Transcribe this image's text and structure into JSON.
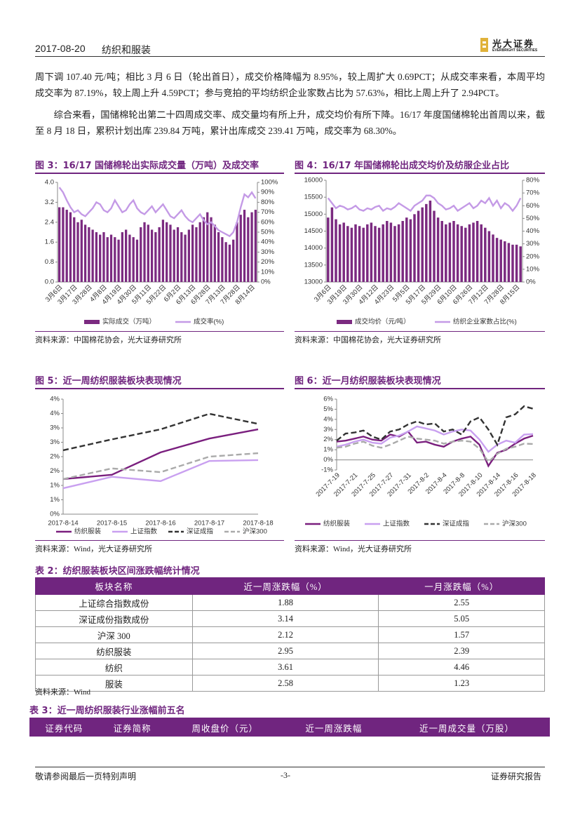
{
  "header": {
    "date": "2017-08-20",
    "sector": "纺织和服装",
    "logo_cn": "光大证券",
    "logo_en": "EVERBRIGHT SECURITIES"
  },
  "paragraphs": [
    "周下调 107.40 元/吨；相比 3 月 6 日（轮出首日），成交价格降幅为 8.95%，较上周扩大 0.69PCT；从成交率来看，本周平均成交率为 87.19%，较上周上升 4.59PCT；参与竞拍的平均纺织企业家数占比为 57.63%，相比上周上升了 2.94PCT。",
    "综合来看，国储棉轮出第二十四周成交率、成交量均有所上升，成交均价有所下降。16/17 年度国储棉轮出首周以来，截至 8 月 18 日，累积计划出库 239.84 万吨，累计出库成交 239.41 万吨，成交率为 68.30%。"
  ],
  "chart_data": [
    {
      "type": "combo",
      "title": "图 3：16/17 国储棉轮出实际成交量（万吨）及成交率",
      "source": "资料来源：中国棉花协会，光大证券研究所",
      "categories": [
        "3月6日",
        null,
        null,
        null,
        "3月17日",
        null,
        null,
        null,
        "3月28日",
        null,
        null,
        null,
        "4月8日",
        null,
        null,
        null,
        "4月19日",
        null,
        null,
        null,
        "4月30日",
        null,
        null,
        null,
        "5月11日",
        null,
        null,
        null,
        "5月22日",
        null,
        null,
        null,
        "6月2日",
        null,
        null,
        null,
        "6月13日",
        null,
        null,
        null,
        "6月28日",
        null,
        null,
        null,
        "7月13日",
        null,
        null,
        null,
        "7月28日",
        null,
        null,
        null,
        "8月14日",
        null
      ],
      "series": [
        {
          "name": "实际成交（万吨）",
          "color": "#7b2a80",
          "type": "bar",
          "values": [
            3.0,
            3.0,
            2.9,
            2.8,
            2.6,
            2.4,
            2.5,
            2.3,
            2.2,
            2.1,
            2.0,
            1.9,
            2.0,
            1.8,
            1.9,
            1.8,
            1.7,
            2.0,
            2.1,
            1.9,
            1.8,
            1.7,
            2.2,
            2.4,
            2.3,
            2.1,
            2.0,
            2.2,
            2.5,
            2.4,
            2.3,
            2.1,
            2.2,
            2.0,
            1.9,
            2.1,
            2.3,
            2.2,
            2.4,
            2.6,
            2.8,
            2.6,
            2.3,
            2.0,
            1.8,
            1.6,
            1.5,
            1.7,
            2.4,
            2.7,
            2.9,
            2.6,
            2.8,
            2.9
          ]
        },
        {
          "name": "成交率(%)",
          "color": "#c49ae6",
          "type": "line",
          "axis": "y2",
          "values": [
            95,
            90,
            82,
            75,
            70,
            72,
            68,
            66,
            70,
            74,
            80,
            78,
            72,
            70,
            74,
            82,
            76,
            70,
            72,
            78,
            82,
            74,
            70,
            68,
            72,
            76,
            70,
            74,
            78,
            72,
            66,
            64,
            68,
            72,
            66,
            62,
            60,
            64,
            68,
            62,
            58,
            60,
            56,
            52,
            50,
            48,
            46,
            50,
            60,
            75,
            88,
            85,
            90,
            84
          ]
        }
      ],
      "ylim": [
        0,
        4
      ],
      "yticks": [
        {
          "value": 0,
          "label": "0.0"
        },
        0.8,
        1.6,
        2.4,
        3.2,
        {
          "value": 4,
          "label": "4.0"
        }
      ],
      "y2lim": [
        0,
        100
      ],
      "y2ticks": [
        {
          "value": 0,
          "label": "0%"
        },
        {
          "value": 10,
          "label": "10%"
        },
        {
          "value": 20,
          "label": "20%"
        },
        {
          "value": 30,
          "label": "30%"
        },
        {
          "value": 40,
          "label": "40%"
        },
        {
          "value": 50,
          "label": "50%"
        },
        {
          "value": 60,
          "label": "60%"
        },
        {
          "value": 70,
          "label": "70%"
        },
        {
          "value": 80,
          "label": "80%"
        },
        {
          "value": 90,
          "label": "90%"
        },
        {
          "value": 100,
          "label": "100%"
        }
      ]
    },
    {
      "type": "combo",
      "title": "图 4：16/17 年国储棉轮出成交均价及纺服企业占比",
      "source": "资料来源：中国棉花协会，光大证券研究所",
      "categories": [
        "3月6日",
        null,
        null,
        null,
        "3月19日",
        null,
        null,
        null,
        "3月30日",
        null,
        null,
        null,
        "4月12日",
        null,
        null,
        null,
        "4月23日",
        null,
        null,
        null,
        "5月5日",
        null,
        null,
        null,
        "5月17日",
        null,
        null,
        null,
        "5月29日",
        null,
        null,
        null,
        "6月10日",
        null,
        null,
        null,
        "6月26日",
        null,
        null,
        null,
        "7月12日",
        null,
        null,
        null,
        "7月28日",
        null,
        null,
        null,
        "8月15日",
        null
      ],
      "series": [
        {
          "name": "成交均价（元/吨）",
          "color": "#7b2a80",
          "type": "bar",
          "values": [
            14900,
            15200,
            14850,
            14700,
            14750,
            14650,
            14600,
            14700,
            14650,
            14600,
            14700,
            14750,
            14650,
            14600,
            14700,
            14800,
            14750,
            14650,
            14700,
            14800,
            14900,
            14850,
            15000,
            15100,
            15200,
            15300,
            15400,
            15100,
            14900,
            14800,
            14700,
            14750,
            14800,
            14700,
            14650,
            14600,
            14700,
            14750,
            14800,
            14700,
            14600,
            14500,
            14400,
            14300,
            14250,
            14200,
            14150,
            14100,
            14100,
            14050
          ]
        },
        {
          "name": "纺织企业家数占比(%)",
          "color": "#c49ae6",
          "type": "line",
          "axis": "y2",
          "values": [
            66,
            62,
            58,
            60,
            59,
            57,
            58,
            60,
            57,
            56,
            58,
            57,
            59,
            60,
            56,
            58,
            57,
            59,
            62,
            60,
            58,
            56,
            60,
            62,
            64,
            68,
            68,
            66,
            62,
            60,
            57,
            58,
            60,
            56,
            58,
            60,
            62,
            58,
            60,
            64,
            62,
            66,
            60,
            64,
            58,
            62,
            60,
            56,
            60,
            66
          ]
        }
      ],
      "ylim": [
        13000,
        16000
      ],
      "yticks": [
        13000,
        13500,
        14000,
        14500,
        15000,
        15500,
        16000
      ],
      "y2lim": [
        0,
        80
      ],
      "y2ticks": [
        {
          "value": 0,
          "label": "0%"
        },
        {
          "value": 10,
          "label": "10%"
        },
        {
          "value": 20,
          "label": "20%"
        },
        {
          "value": 30,
          "label": "30%"
        },
        {
          "value": 40,
          "label": "40%"
        },
        {
          "value": 50,
          "label": "50%"
        },
        {
          "value": 60,
          "label": "60%"
        },
        {
          "value": 70,
          "label": "70%"
        },
        {
          "value": 80,
          "label": "80%"
        }
      ]
    },
    {
      "type": "line",
      "title": "图 5：近一周纺织服装板块表现情况",
      "source": "资料来源：Wind，光大证券研究所",
      "categories": [
        "2017-8-14",
        "2017-8-15",
        "2017-8-16",
        "2017-8-17",
        "2017-8-18"
      ],
      "series": [
        {
          "name": "纺织服装",
          "color": "#7a1f7e",
          "values": [
            1.22,
            1.37,
            2.15,
            2.63,
            2.95
          ]
        },
        {
          "name": "上证指数",
          "color": "#c9a0f0",
          "values": [
            0.9,
            1.3,
            1.15,
            1.85,
            1.88
          ]
        },
        {
          "name": "深证成指",
          "color": "#333333",
          "dashed": true,
          "values": [
            2.22,
            2.6,
            2.95,
            3.49,
            3.14
          ]
        },
        {
          "name": "沪深300",
          "color": "#aaaaaa",
          "dashed": true,
          "values": [
            1.22,
            1.59,
            1.46,
            2.0,
            2.12
          ]
        }
      ],
      "ylim": [
        0,
        4
      ],
      "yticks": [
        {
          "value": 0,
          "label": "0%"
        },
        {
          "value": 0.5,
          "label": "1%"
        },
        {
          "value": 1,
          "label": "1%"
        },
        {
          "value": 1.5,
          "label": "2%"
        },
        {
          "value": 2,
          "label": "2%"
        },
        {
          "value": 2.5,
          "label": "3%"
        },
        {
          "value": 3,
          "label": "3%"
        },
        {
          "value": 3.5,
          "label": "4%"
        },
        {
          "value": 4,
          "label": "4%"
        }
      ]
    },
    {
      "type": "line",
      "title": "图 6：近一月纺织服装板块表现情况",
      "source": "资料来源：Wind，光大证券研究所",
      "categories": [
        "2017-7-19",
        null,
        "2017-7-21",
        null,
        "2017-7-25",
        null,
        "2017-7-27",
        null,
        "2017-7-31",
        null,
        "2017-8-2",
        null,
        "2017-8-4",
        null,
        "2017-8-8",
        null,
        "2017-8-10",
        null,
        "2017-8-14",
        null,
        "2017-8-16",
        null,
        "2017-8-18"
      ],
      "series": [
        {
          "name": "纺织服装",
          "color": "#7a1f7e",
          "values": [
            1.8,
            1.9,
            2.1,
            2.3,
            2.0,
            1.9,
            2.5,
            2.3,
            2.8,
            1.7,
            1.8,
            1.5,
            1.3,
            1.8,
            2.1,
            2.3,
            1.5,
            -0.6,
            0.7,
            1.0,
            1.6,
            2.1,
            2.39
          ]
        },
        {
          "name": "上证指数",
          "color": "#c9a0f0",
          "values": [
            1.3,
            1.5,
            1.8,
            2.0,
            1.7,
            1.6,
            2.2,
            2.4,
            2.8,
            3.3,
            3.1,
            2.9,
            2.5,
            2.8,
            3.0,
            2.9,
            2.0,
            0.8,
            1.5,
            1.9,
            1.7,
            2.5,
            2.55
          ]
        },
        {
          "name": "深证成指",
          "color": "#333333",
          "dashed": true,
          "values": [
            1.9,
            2.6,
            2.7,
            2.9,
            2.3,
            2.0,
            2.8,
            3.0,
            3.5,
            3.8,
            3.5,
            3.6,
            2.8,
            3.0,
            2.5,
            3.8,
            4.2,
            3.0,
            1.5,
            4.2,
            4.5,
            5.3,
            5.05
          ]
        },
        {
          "name": "沪深300",
          "color": "#aaaaaa",
          "dashed": true,
          "values": [
            1.2,
            1.3,
            1.6,
            1.8,
            1.4,
            1.2,
            1.5,
            1.9,
            2.3,
            2.1,
            2.0,
            1.9,
            1.6,
            1.8,
            1.9,
            1.8,
            1.1,
            -0.2,
            0.6,
            1.1,
            1.3,
            1.6,
            1.57
          ]
        }
      ],
      "ylim": [
        -1,
        6
      ],
      "yticks": [
        {
          "value": -1,
          "label": "-1%"
        },
        {
          "value": 0,
          "label": "0%"
        },
        {
          "value": 1,
          "label": "1%"
        },
        {
          "value": 2,
          "label": "2%"
        },
        {
          "value": 3,
          "label": "3%"
        },
        {
          "value": 4,
          "label": "4%"
        },
        {
          "value": 5,
          "label": "5%"
        },
        {
          "value": 6,
          "label": "6%"
        }
      ]
    }
  ],
  "tables": [
    {
      "title": "表 2：纺织服装板块区间涨跌幅统计情况",
      "columns": [
        "板块名称",
        "近一周涨跌幅（%）",
        "一月涨跌幅（%）"
      ],
      "rows": [
        [
          "上证综合指数成份",
          1.88,
          2.55
        ],
        [
          "深证成份指数成份",
          3.14,
          5.05
        ],
        [
          "沪深 300",
          2.12,
          1.57
        ],
        [
          "纺织服装",
          2.95,
          2.39
        ],
        [
          "纺织",
          3.61,
          4.46
        ],
        [
          "服装",
          2.58,
          1.23
        ]
      ],
      "source": "资料来源：Wind"
    },
    {
      "title": "表 3：近一周纺织服装行业涨幅前五名",
      "columns": [
        "证券代码",
        "证券简称",
        "周收盘价（元）",
        "近一周涨跌幅",
        "近一周成交量（万股）"
      ]
    }
  ],
  "footer": {
    "left": "敬请参阅最后一页特别声明",
    "center": "-3-",
    "right": "证券研究报告"
  }
}
